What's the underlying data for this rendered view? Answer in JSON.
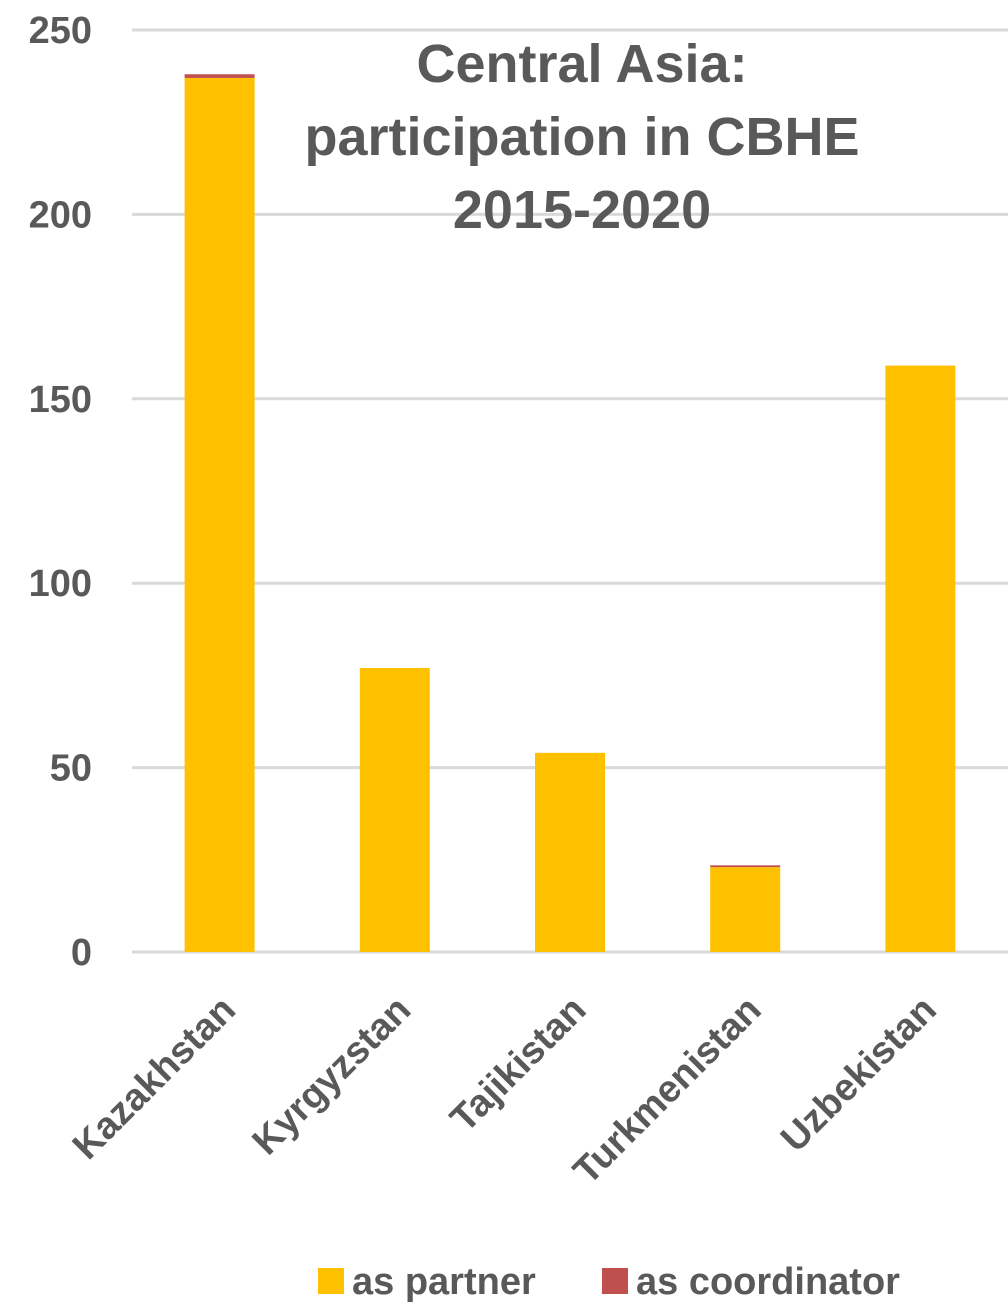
{
  "chart_data": {
    "type": "bar",
    "stacked": true,
    "title_lines": [
      "Central Asia:",
      "participation in CBHE",
      "2015-2020"
    ],
    "categories": [
      "Kazakhstan",
      "Kyrgyzstan",
      "Tajikistan",
      "Turkmenistan",
      "Uzbekistan"
    ],
    "series": [
      {
        "name": "as partner",
        "color": "#FFC000",
        "values": [
          237,
          77,
          54,
          23,
          159
        ]
      },
      {
        "name": "as coordinator",
        "color": "#C0504D",
        "values": [
          1,
          0,
          0,
          0.5,
          0
        ]
      }
    ],
    "ylim": [
      0,
      250
    ],
    "yticks": [
      "0",
      "50",
      "100",
      "150",
      "200",
      "250"
    ],
    "grid": true,
    "legend": "bottom",
    "xlabel": "",
    "ylabel": ""
  }
}
